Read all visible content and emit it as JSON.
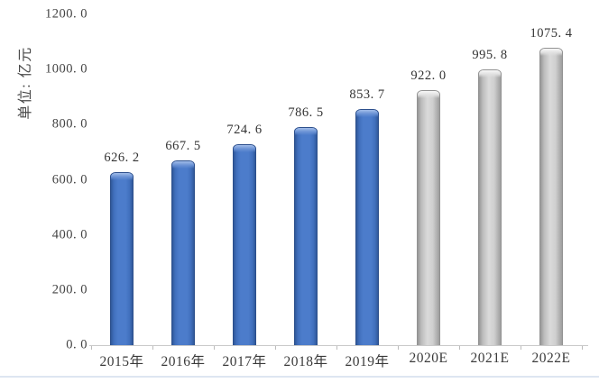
{
  "page": {
    "background": "#ffffff"
  },
  "chart_data": {
    "type": "bar",
    "title": "",
    "xlabel": "",
    "ylabel": "单位: 亿元",
    "categories": [
      "2015年",
      "2016年",
      "2017年",
      "2018年",
      "2019年",
      "2020E",
      "2021E",
      "2022E"
    ],
    "values": [
      626.2,
      667.5,
      724.6,
      786.5,
      853.7,
      922.0,
      995.8,
      1075.4
    ],
    "value_labels": [
      "626. 2",
      "667. 5",
      "724. 6",
      "786. 5",
      "853. 7",
      "922. 0",
      "995. 8",
      "1075. 4"
    ],
    "bar_styles": [
      "actual",
      "actual",
      "actual",
      "actual",
      "actual",
      "estimate",
      "estimate",
      "estimate"
    ],
    "ylim": [
      0,
      1200
    ],
    "y_ticks": [
      0,
      200,
      400,
      600,
      800,
      1000,
      1200
    ],
    "y_tick_labels": [
      "0. 0",
      "200. 0",
      "400. 0",
      "600. 0",
      "800. 0",
      "1000. 0",
      "1200. 0"
    ],
    "grid": false,
    "legend": null,
    "colors": {
      "actual_bar": "#4472c4",
      "estimate_bar": "#c0c0c0",
      "axis_line": "#c9c9c9",
      "text": "#3d3d3d",
      "bottom_rule": "#dde6f1"
    }
  }
}
